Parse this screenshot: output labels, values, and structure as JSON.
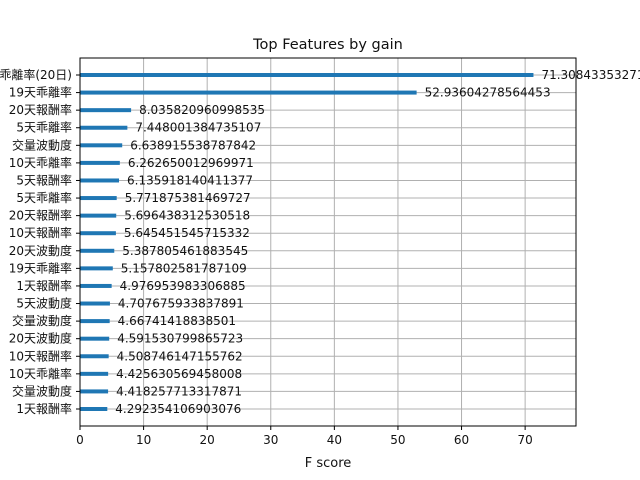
{
  "chart_data": {
    "type": "bar",
    "orientation": "horizontal",
    "title": "Top Features by gain",
    "xlabel": "F score",
    "ylabel": "",
    "xlim": [
      0,
      78
    ],
    "xticks": [
      0,
      10,
      20,
      30,
      40,
      50,
      60,
      70
    ],
    "grid": true,
    "categories": [
      "乖離率(20日)",
      "19天乖離率",
      "20天報酬率",
      "5天乖離率",
      "交量波動度",
      "10天乖離率",
      "5天報酬率",
      "5天乖離率",
      "20天報酬率",
      "10天報酬率",
      "20天波動度",
      "19天乖離率",
      "1天報酬率",
      "5天波動度",
      "交量波動度",
      "20天波動度",
      "10天報酬率",
      "10天乖離率",
      "交量波動度",
      "1天報酬率"
    ],
    "values": [
      71.30843353271,
      52.93604278564453,
      8.035820960998535,
      7.448001384735107,
      6.638915538787842,
      6.262650012969971,
      6.135918140411377,
      5.771875381469727,
      5.696438312530518,
      5.645451545715332,
      5.387805461883545,
      5.157802581787109,
      4.976953983306885,
      4.707675933837891,
      4.66741418838501,
      4.591530799865723,
      4.508746147155762,
      4.425630569458008,
      4.418257713317871,
      4.292354106903076
    ],
    "value_labels": [
      "71.30843353271",
      "52.93604278564453",
      "8.035820960998535",
      "7.448001384735107",
      "6.638915538787842",
      "6.262650012969971",
      "6.135918140411377",
      "5.771875381469727",
      "5.696438312530518",
      "5.645451545715332",
      "5.387805461883545",
      "5.157802581787109",
      "4.976953983306885",
      "4.707675933837891",
      "4.66741418838501",
      "4.591530799865723",
      "4.508746147155762",
      "4.425630569458008",
      "4.418257713317871",
      "4.292354106903076"
    ],
    "bar_color": "#1f77b4"
  }
}
